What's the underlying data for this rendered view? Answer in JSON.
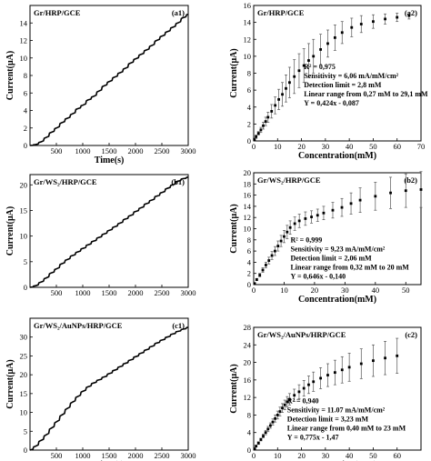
{
  "chart_data": [
    {
      "id": "a1",
      "type": "line",
      "tag": "(a1)",
      "title": "Gr/HRP/GCE",
      "xlabel": "Time(s)",
      "ylabel": "Current(μA)",
      "xlim": [
        0,
        3000
      ],
      "ylim": [
        0,
        16
      ],
      "xticks": [
        "500",
        "1000",
        "1500",
        "2000",
        "2500",
        "3000"
      ],
      "xtick_values": [
        500,
        1000,
        1500,
        2000,
        2500,
        3000
      ],
      "yticks": [
        "0",
        "2",
        "4",
        "6",
        "8",
        "10",
        "12",
        "14"
      ],
      "ytick_values": [
        0,
        2,
        4,
        6,
        8,
        10,
        12,
        14
      ],
      "x": [
        0,
        100,
        200,
        300,
        400,
        500,
        600,
        700,
        800,
        900,
        1000,
        1100,
        1200,
        1300,
        1400,
        1500,
        1600,
        1700,
        1800,
        1900,
        2000,
        2100,
        2200,
        2300,
        2400,
        2500,
        2600,
        2700,
        2800,
        2900,
        3000
      ],
      "y": [
        0.0,
        0.1,
        0.4,
        0.9,
        1.5,
        2.0,
        2.6,
        3.1,
        3.6,
        4.2,
        4.6,
        5.2,
        5.6,
        6.2,
        6.8,
        7.3,
        7.8,
        8.3,
        8.8,
        9.4,
        9.9,
        10.4,
        10.9,
        11.4,
        12.0,
        12.5,
        13.0,
        13.5,
        14.0,
        14.6,
        15.0
      ]
    },
    {
      "id": "a2",
      "type": "scatter",
      "tag": "(a2)",
      "title": "Gr/HRP/GCE",
      "xlabel": "Concentration(mM)",
      "ylabel": "Current(μA)",
      "xlim": [
        0,
        70
      ],
      "ylim": [
        0,
        16
      ],
      "xticks": [
        "0",
        "10",
        "20",
        "30",
        "40",
        "50",
        "60",
        "70"
      ],
      "xtick_values": [
        0,
        10,
        20,
        30,
        40,
        50,
        60,
        70
      ],
      "yticks": [
        "0",
        "2",
        "4",
        "6",
        "8",
        "10",
        "12",
        "14",
        "16"
      ],
      "ytick_values": [
        0,
        2,
        4,
        6,
        8,
        10,
        12,
        14,
        16
      ],
      "x": [
        0.3,
        1,
        2,
        3,
        4,
        5,
        6,
        7.5,
        9,
        10.5,
        12,
        13.5,
        15,
        17,
        19,
        21,
        23,
        25,
        28,
        31,
        34,
        37,
        41,
        45,
        50,
        55,
        60,
        65
      ],
      "y": [
        0.2,
        0.5,
        0.9,
        1.3,
        1.8,
        2.3,
        2.8,
        3.5,
        4.2,
        4.9,
        5.5,
        6.2,
        6.9,
        7.6,
        8.3,
        8.9,
        9.5,
        10.0,
        10.8,
        11.5,
        12.2,
        12.8,
        13.4,
        13.8,
        14.1,
        14.4,
        14.6,
        14.8
      ],
      "err": [
        0.1,
        0.2,
        0.2,
        0.3,
        0.4,
        0.5,
        0.6,
        0.8,
        1.0,
        1.2,
        1.4,
        1.6,
        1.8,
        2.0,
        2.0,
        2.0,
        2.0,
        2.0,
        1.8,
        1.6,
        1.5,
        1.3,
        1.1,
        1.0,
        0.8,
        0.6,
        0.5,
        0.4
      ],
      "annotations": [
        "R² = 0,975",
        "Sensitivity = 6,06 mA/mM/cm²",
        "Detection limit = 2,8 mM",
        "Linear range from 0,27 mM to 29,1 mM",
        "Y = 0,424x - 0,087"
      ]
    },
    {
      "id": "b1",
      "type": "line",
      "tag": "(b1)",
      "title": "Gr/WS₂/HRP/GCE",
      "xlabel": "",
      "ylabel": "Current(μA)",
      "xlim": [
        0,
        3000
      ],
      "ylim": [
        0,
        22
      ],
      "xticks": [
        "500",
        "1000",
        "1500",
        "2000",
        "2500",
        "3000"
      ],
      "xtick_values": [
        500,
        1000,
        1500,
        2000,
        2500,
        3000
      ],
      "yticks": [
        "0",
        "5",
        "10",
        "15",
        "20"
      ],
      "ytick_values": [
        0,
        5,
        10,
        15,
        20
      ],
      "x": [
        0,
        100,
        200,
        300,
        400,
        500,
        600,
        700,
        800,
        900,
        1000,
        1100,
        1200,
        1300,
        1400,
        1500,
        1600,
        1700,
        1800,
        1900,
        2000,
        2100,
        2200,
        2300,
        2400,
        2500,
        2600,
        2700,
        2800,
        2900,
        3000
      ],
      "y": [
        0.0,
        0.3,
        1.0,
        1.8,
        2.8,
        3.6,
        4.6,
        5.4,
        6.2,
        6.9,
        7.6,
        8.3,
        9.0,
        9.7,
        10.4,
        11.1,
        11.8,
        12.5,
        13.3,
        14.0,
        14.8,
        15.5,
        16.3,
        17.0,
        17.8,
        18.5,
        19.3,
        20.0,
        20.7,
        21.2,
        21.5
      ]
    },
    {
      "id": "b2",
      "type": "scatter",
      "tag": "(b2)",
      "title": "Gr/WS₂/HRP/GCE",
      "xlabel": "Concentration(mM)",
      "ylabel": "Current(μA)",
      "xlim": [
        0,
        55
      ],
      "ylim": [
        0,
        20
      ],
      "xticks": [
        "0",
        "10",
        "20",
        "30",
        "40",
        "50"
      ],
      "xtick_values": [
        0,
        10,
        20,
        30,
        40,
        50
      ],
      "yticks": [
        "0",
        "2",
        "4",
        "6",
        "8",
        "10",
        "12",
        "14",
        "16",
        "18",
        "20"
      ],
      "ytick_values": [
        0,
        2,
        4,
        6,
        8,
        10,
        12,
        14,
        16,
        18,
        20
      ],
      "x": [
        0.3,
        1,
        2,
        3,
        4,
        5,
        6,
        7,
        8,
        9,
        10,
        11,
        12,
        13.5,
        15,
        17,
        19,
        21,
        23,
        26,
        29,
        32,
        35,
        40,
        45,
        50,
        55
      ],
      "y": [
        0.2,
        0.9,
        1.7,
        2.6,
        3.5,
        4.3,
        5.2,
        6.0,
        6.9,
        7.8,
        8.6,
        9.4,
        10.2,
        10.9,
        11.4,
        11.8,
        12.1,
        12.4,
        12.8,
        13.3,
        13.8,
        14.5,
        15.1,
        15.8,
        16.4,
        16.8,
        17.0
      ],
      "err": [
        0.1,
        0.2,
        0.3,
        0.4,
        0.5,
        0.6,
        0.7,
        0.8,
        0.9,
        1.0,
        1.1,
        1.2,
        1.2,
        1.2,
        1.2,
        1.2,
        1.1,
        1.1,
        1.2,
        1.4,
        1.6,
        1.9,
        2.2,
        2.5,
        2.8,
        3.0,
        3.2
      ],
      "annotations": [
        "R² = 0,999",
        "Sensitivity = 9,23 mA/mM/cm²",
        "Detection limit = 2,06 mM",
        "Linear range from 0,32 mM to 20 mM",
        "Y = 0,646x - 0,140"
      ]
    },
    {
      "id": "c1",
      "type": "line",
      "tag": "(c1)",
      "title": "Gr/WS₂/AuNPs/HRP/GCE",
      "xlabel": "Time(s)",
      "ylabel": "Current(μA)",
      "xlim": [
        0,
        3000
      ],
      "ylim": [
        0,
        35
      ],
      "xticks": [
        "500",
        "1000",
        "1500",
        "2000",
        "2500",
        "3000"
      ],
      "xtick_values": [
        500,
        1000,
        1500,
        2000,
        2500,
        3000
      ],
      "yticks": [
        "0",
        "5",
        "10",
        "15",
        "20",
        "25",
        "30"
      ],
      "ytick_values": [
        0,
        5,
        10,
        15,
        20,
        25,
        30
      ],
      "x": [
        0,
        100,
        200,
        300,
        400,
        500,
        600,
        700,
        800,
        900,
        1000,
        1100,
        1200,
        1300,
        1400,
        1500,
        1600,
        1700,
        1800,
        1900,
        2000,
        2100,
        2200,
        2300,
        2400,
        2500,
        2600,
        2700,
        2800,
        2900,
        3000
      ],
      "y": [
        0.0,
        1.0,
        2.5,
        4.0,
        5.8,
        7.5,
        9.3,
        11.0,
        12.7,
        14.2,
        15.6,
        16.8,
        17.8,
        18.6,
        19.4,
        20.3,
        21.2,
        22.1,
        23.0,
        23.9,
        24.8,
        25.7,
        26.6,
        27.5,
        28.4,
        29.2,
        30.0,
        30.8,
        31.5,
        32.1,
        32.6
      ]
    },
    {
      "id": "c2",
      "type": "scatter",
      "tag": "(c2)",
      "title": "Gr/WS₂/AuNPs/HRP/GCE",
      "xlabel": "Concentration(mM)",
      "ylabel": "Current(μA)",
      "xlim": [
        0,
        70
      ],
      "ylim": [
        0,
        28
      ],
      "xticks": [
        "0",
        "10",
        "20",
        "30",
        "40",
        "50",
        "60"
      ],
      "xtick_values": [
        0,
        10,
        20,
        30,
        40,
        50,
        60
      ],
      "yticks": [
        "0",
        "4",
        "8",
        "12",
        "16",
        "20",
        "24",
        "28"
      ],
      "ytick_values": [
        0,
        4,
        8,
        12,
        16,
        20,
        24,
        28
      ],
      "x": [
        0.4,
        1,
        2,
        3,
        4,
        5,
        6,
        7,
        8,
        9,
        10,
        11,
        12,
        13,
        14,
        15,
        17,
        19,
        21,
        23,
        25,
        28,
        31,
        34,
        37,
        40,
        45,
        50,
        55,
        60
      ],
      "y": [
        0.3,
        0.9,
        1.6,
        2.4,
        3.2,
        4.0,
        4.8,
        5.6,
        6.4,
        7.2,
        8.0,
        8.8,
        9.6,
        10.3,
        11.0,
        11.6,
        12.5,
        13.3,
        14.1,
        14.9,
        15.6,
        16.4,
        17.1,
        17.7,
        18.3,
        18.9,
        19.7,
        20.4,
        21.0,
        21.5
      ],
      "err": [
        0.1,
        0.2,
        0.3,
        0.3,
        0.4,
        0.5,
        0.6,
        0.6,
        0.7,
        0.8,
        0.9,
        1.0,
        1.0,
        1.1,
        1.2,
        1.3,
        1.4,
        1.6,
        1.8,
        2.0,
        2.2,
        2.4,
        2.6,
        2.8,
        3.0,
        3.2,
        3.4,
        3.6,
        3.8,
        4.0
      ],
      "annotations": [
        "R² = 0,940",
        "Sensitivity = 11.07 mA/mM/cm²",
        "Detection limit = 3,23 mM",
        "Linear range from 0,40 mM to 23 mM",
        "Y = 0,775x - 1,47"
      ]
    }
  ]
}
